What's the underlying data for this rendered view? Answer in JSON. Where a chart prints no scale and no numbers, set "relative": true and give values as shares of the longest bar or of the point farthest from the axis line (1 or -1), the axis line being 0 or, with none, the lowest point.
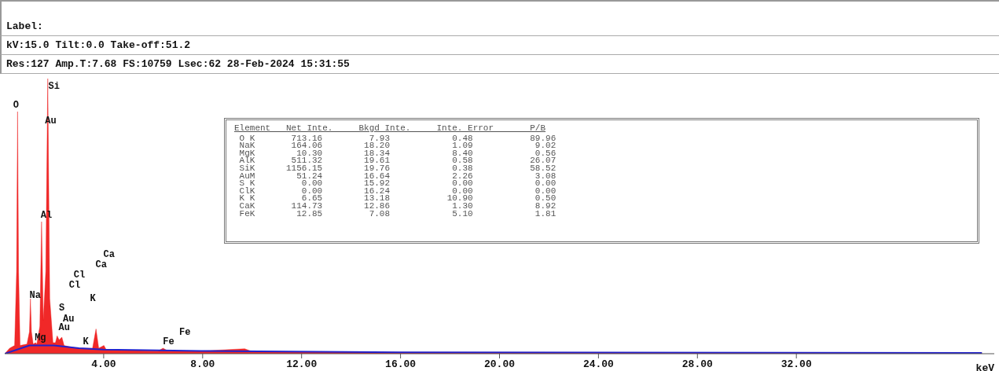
{
  "chart_data": {
    "type": "area",
    "title": "Label:",
    "subtitle": "kV:15.0 Tilt:0.0 Take-off:51.2",
    "xlabel": "keV",
    "relative": true,
    "xlim": [
      0,
      40
    ],
    "xticks": [
      {
        "value": 4,
        "label": "4.00"
      },
      {
        "value": 8,
        "label": "8.00"
      },
      {
        "value": 12,
        "label": "12.00"
      },
      {
        "value": 16,
        "label": "16.00"
      },
      {
        "value": 20,
        "label": "20.00"
      },
      {
        "value": 24,
        "label": "24.00"
      },
      {
        "value": 28,
        "label": "28.00"
      },
      {
        "value": 32,
        "label": "32.00"
      }
    ],
    "grid": false,
    "legend": false,
    "series": [
      {
        "type": "area",
        "color": "#ee1111",
        "x": [
          0,
          0.2,
          0.4,
          0.48,
          0.52,
          0.56,
          0.62,
          0.9,
          1.0,
          1.04,
          1.08,
          1.15,
          1.25,
          1.3,
          1.42,
          1.49,
          1.56,
          1.66,
          1.74,
          1.82,
          1.95,
          2.05,
          2.12,
          2.2,
          2.31,
          2.4,
          2.62,
          2.82,
          3.0,
          3.31,
          3.55,
          3.69,
          3.8,
          4.01,
          4.1,
          5,
          6.2,
          6.4,
          6.6,
          7.06,
          8,
          9.7,
          10,
          12,
          16,
          20,
          30,
          39.5
        ],
        "values": [
          0,
          0.02,
          0.03,
          0.3,
          0.88,
          0.3,
          0.03,
          0.035,
          0.08,
          0.2,
          0.08,
          0.035,
          0.04,
          0.035,
          0.1,
          0.48,
          0.12,
          0.3,
          1,
          0.2,
          0.04,
          0.04,
          0.065,
          0.05,
          0.06,
          0.03,
          0.025,
          0.022,
          0.02,
          0.02,
          0.02,
          0.09,
          0.02,
          0.03,
          0.015,
          0.012,
          0.01,
          0.02,
          0.01,
          0.01,
          0.01,
          0.018,
          0.008,
          0.007,
          0.005,
          0.005,
          0.004,
          0.003
        ]
      },
      {
        "type": "line",
        "color": "#2222cc",
        "x": [
          0,
          1,
          2,
          3,
          4,
          8,
          16,
          39.5
        ],
        "values": [
          0,
          0.03,
          0.03,
          0.02,
          0.015,
          0.01,
          0.005,
          0.003
        ]
      }
    ],
    "annotations": [
      "Res:127 Amp.T:7.68 FS:10759 Lsec:62 28-Feb-2024 15:31:55",
      "Element   Net Inte.     Bkgd Inte.     Inte. Error       P/B",
      " O K       713.16         7.93            0.48           89.96",
      " NaK       164.06        18.20            1.09            9.02",
      " MgK        10.30        18.34            8.40            0.56",
      " AlK       511.32        19.61            0.58           26.07",
      " SiK      1156.15        19.76            0.38           58.52",
      " AuM        51.24        16.64            2.26            3.08",
      " S K         0.00        15.92            0.00            0.00",
      " ClK         0.00        16.24            0.00            0.00",
      " K K         6.65        13.18           10.90            0.50",
      " CaK       114.73        12.86            1.30            8.92",
      " FeK        12.85         7.08            5.10            1.81",
      {
        "text": "O",
        "x": 0.52,
        "y": 0.88
      },
      {
        "text": "Si",
        "x": 1.74,
        "y": 1
      },
      "Au",
      {
        "text": "Al",
        "x": 1.49,
        "y": 0.48
      },
      {
        "text": "Na",
        "x": 1.04,
        "y": 0.2
      },
      {
        "text": "S",
        "x": 2.31,
        "y": 0.06
      },
      {
        "text": "Au",
        "x": 2.2,
        "y": 0.05
      },
      {
        "text": "Au",
        "x": 2.12,
        "y": 0.065
      },
      {
        "text": "Mg",
        "x": 1.25,
        "y": 0.04
      },
      {
        "text": "K",
        "x": 3.31,
        "y": 0.02
      },
      "K",
      "Cl",
      "Cl",
      "Ca",
      "Ca",
      {
        "text": "Fe",
        "x": 7.06,
        "y": 0.01
      },
      {
        "text": "Fe",
        "x": 6.4,
        "y": 0.02
      }
    ]
  }
}
